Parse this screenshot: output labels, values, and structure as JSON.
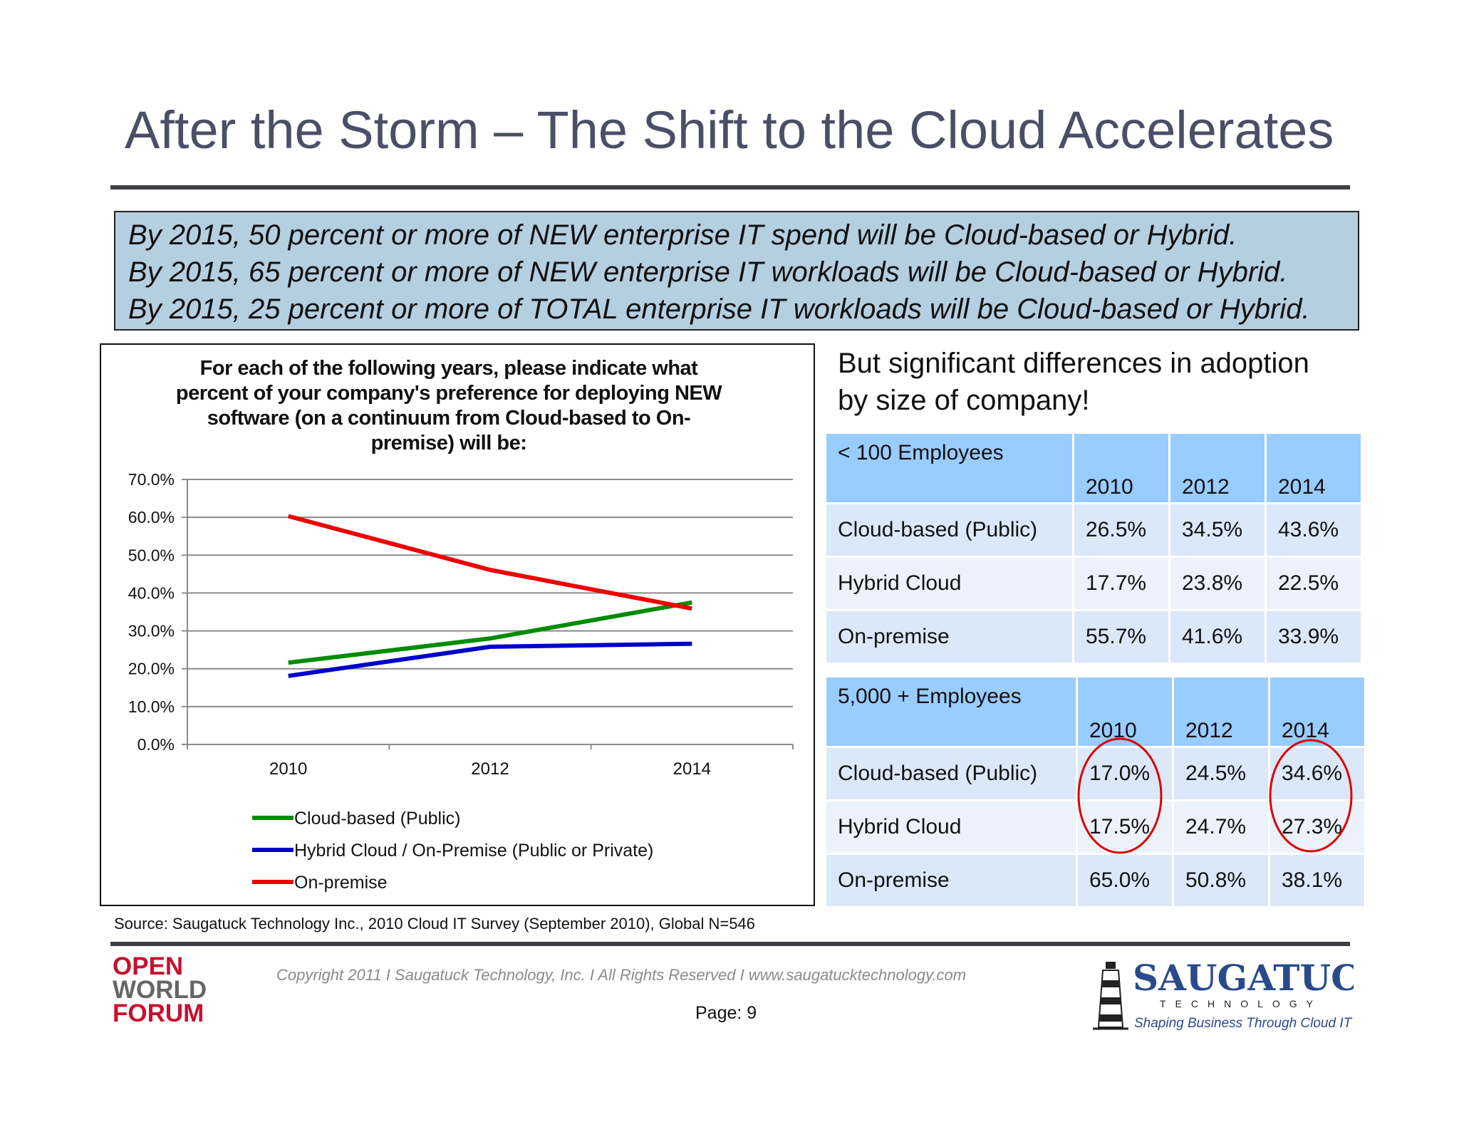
{
  "title": "After the Storm – The Shift to the Cloud Accelerates",
  "claims": [
    "By 2015, 50 percent or more of NEW enterprise IT spend will be Cloud-based or Hybrid.",
    "By 2015, 65 percent or more of NEW enterprise IT workloads will be Cloud-based or Hybrid.",
    "By 2015, 25 percent or more of TOTAL enterprise IT workloads will be Cloud-based or Hybrid."
  ],
  "chart_data": {
    "type": "line",
    "title_lines": [
      "For each of the following years, please indicate what",
      "percent of your company's preference for deploying NEW",
      "software (on a continuum from Cloud-based to On-",
      "premise) will be:"
    ],
    "x": [
      "2010",
      "2012",
      "2014"
    ],
    "ylim": [
      0,
      70
    ],
    "yticks": [
      "0.0%",
      "10.0%",
      "20.0%",
      "30.0%",
      "40.0%",
      "50.0%",
      "60.0%",
      "70.0%"
    ],
    "grid": true,
    "legend_position": "bottom",
    "series": [
      {
        "name": "Cloud-based (Public)",
        "color": "#008c00",
        "values": [
          21.6,
          28.0,
          37.5
        ]
      },
      {
        "name": "Hybrid Cloud / On-Premise (Public or Private)",
        "color": "#0000c8",
        "values": [
          18.1,
          25.8,
          26.6
        ]
      },
      {
        "name": "On-premise",
        "color": "#ee0000",
        "values": [
          60.3,
          46.1,
          35.9
        ]
      }
    ]
  },
  "source": "Source: Saugatuck Technology Inc., 2010 Cloud IT Survey (September 2010), Global N=546",
  "subhead": [
    "But significant differences in adoption",
    "by size of company!"
  ],
  "table_small": {
    "label": "< 100 Employees",
    "years": [
      "2010",
      "2012",
      "2014"
    ],
    "rows": [
      {
        "name": "Cloud-based (Public)",
        "values": [
          "26.5%",
          "34.5%",
          "43.6%"
        ]
      },
      {
        "name": "Hybrid Cloud",
        "values": [
          "17.7%",
          "23.8%",
          "22.5%"
        ]
      },
      {
        "name": "On-premise",
        "values": [
          "55.7%",
          "41.6%",
          "33.9%"
        ]
      }
    ]
  },
  "table_large": {
    "label": "5,000 + Employees",
    "years": [
      "2010",
      "2012",
      "2014"
    ],
    "rows": [
      {
        "name": "Cloud-based (Public)",
        "values": [
          "17.0%",
          "24.5%",
          "34.6%"
        ]
      },
      {
        "name": "Hybrid Cloud",
        "values": [
          "17.5%",
          "24.7%",
          "27.3%"
        ]
      },
      {
        "name": "On-premise",
        "values": [
          "65.0%",
          "50.8%",
          "38.1%"
        ]
      }
    ]
  },
  "footer": {
    "copyright": "Copyright 2011  I  Saugatuck Technology, Inc.  I   All Rights Reserved   I   www.saugatucktechnology.com",
    "page": "Page:  9"
  },
  "logos": {
    "left": [
      "OPEN",
      "WORLD",
      "FORUM"
    ],
    "right_name": "SAUGATUCK",
    "right_sub": "TECHNOLOGY",
    "right_tagline": "Shaping Business Through Cloud IT"
  },
  "colors": {
    "title": "#4a4f66",
    "claim_box": "#b4cfe0",
    "table_header": "#99ccff",
    "circle": "#dd0000"
  }
}
